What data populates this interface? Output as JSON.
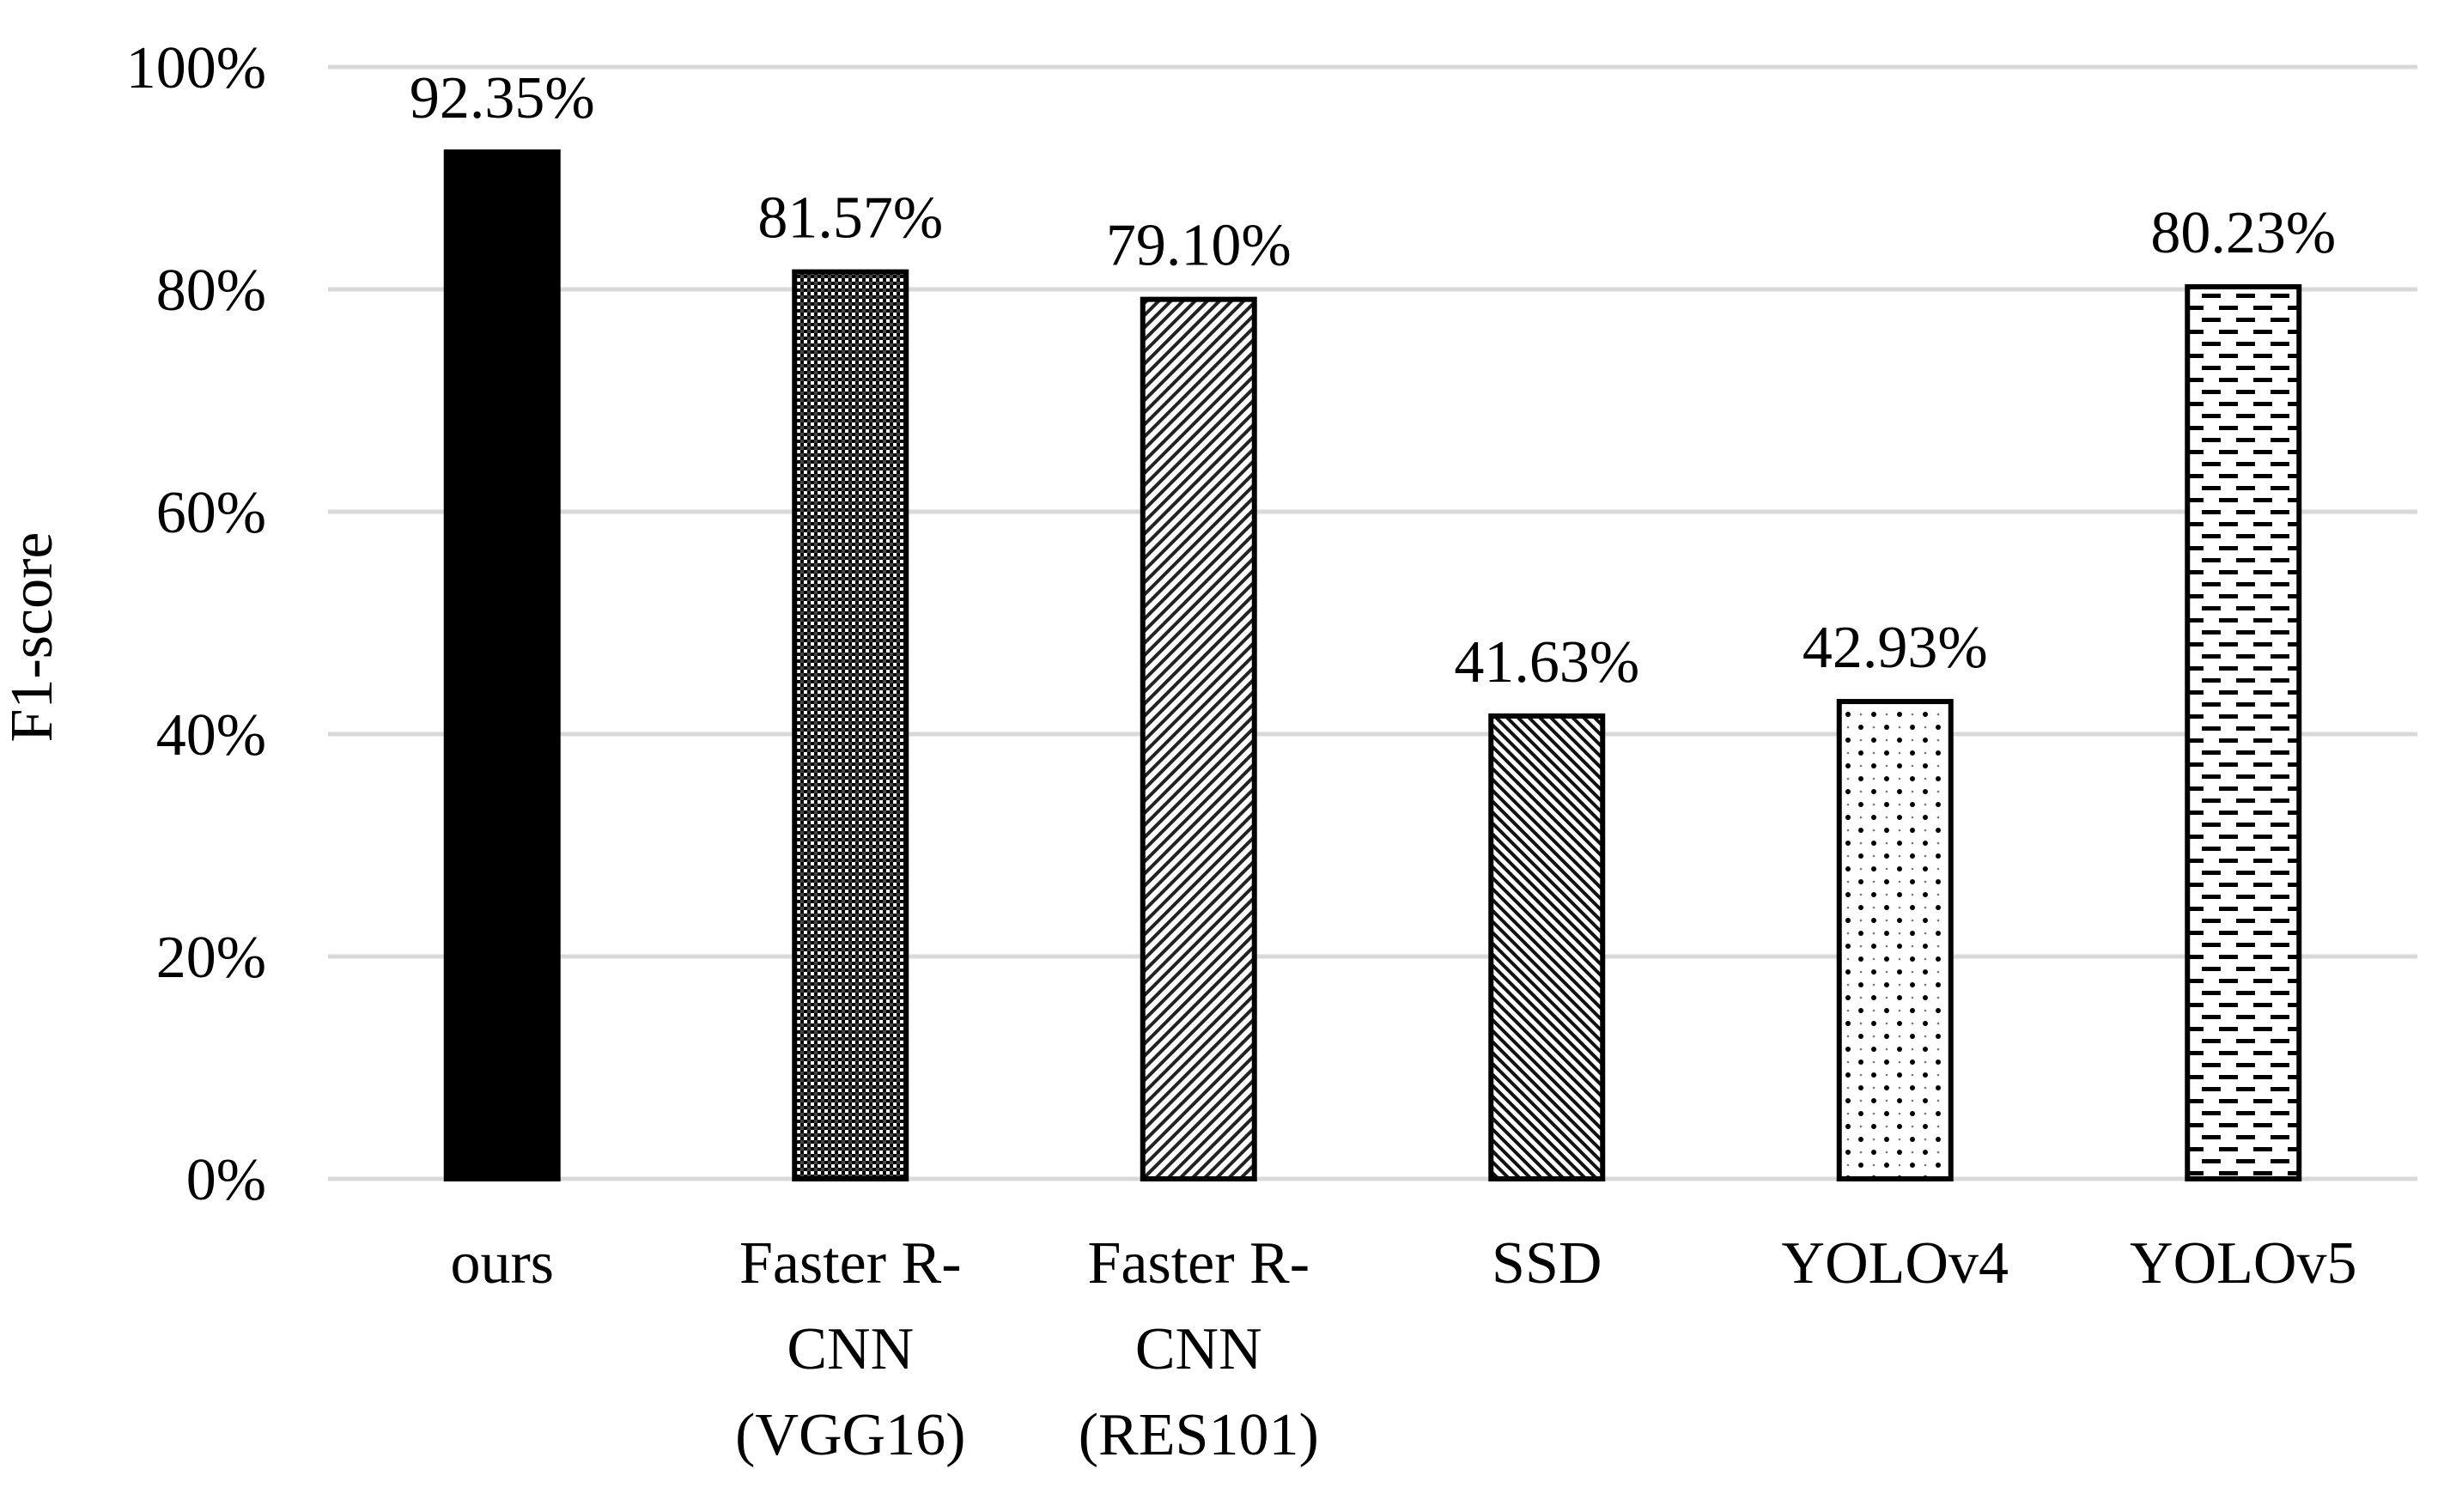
{
  "chart_data": {
    "type": "bar",
    "title": "",
    "xlabel": "",
    "ylabel": "F1-score",
    "ylim": [
      0,
      100
    ],
    "y_ticks": [
      "0%",
      "20%",
      "40%",
      "60%",
      "80%",
      "100%"
    ],
    "y_tick_values": [
      0,
      20,
      40,
      60,
      80,
      100
    ],
    "grid": true,
    "categories": [
      [
        "ours"
      ],
      [
        "Faster R-",
        "CNN",
        "(VGG16)"
      ],
      [
        "Faster R-",
        "CNN",
        "(RES101)"
      ],
      [
        "SSD"
      ],
      [
        "YOLOv4"
      ],
      [
        "YOLOv5"
      ]
    ],
    "values": [
      92.35,
      81.57,
      79.1,
      41.63,
      42.93,
      80.23
    ],
    "data_labels": [
      "92.35%",
      "81.57%",
      "79.10%",
      "41.63%",
      "42.93%",
      "80.23%"
    ],
    "fills": [
      "solid-black",
      "checker-dense",
      "diagonal-fine",
      "diagonal-dense",
      "dotted-sparse",
      "dashed-horizontal"
    ]
  }
}
